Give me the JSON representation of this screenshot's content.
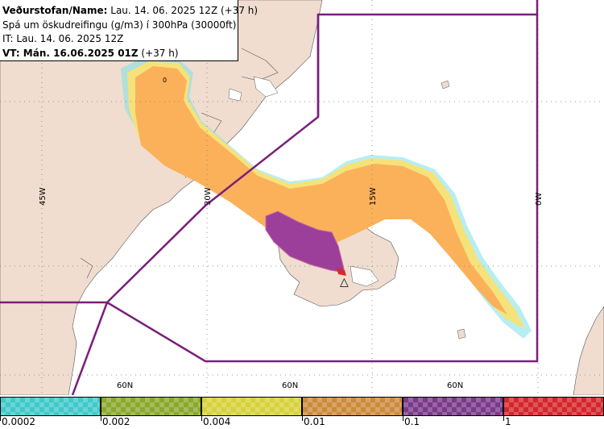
{
  "header": {
    "line1_bold": "Veðurstofan/Name:",
    "line1_rest": " Lau. 14. 06. 2025 12Z (+37 h)",
    "line2": "Spá um öskudreifingu (g/m3) í 300hPa (30000ft)",
    "line3": "IT: Lau. 14. 06. 2025 12Z",
    "line4_bold": "VT: Mán. 16.06.2025 01Z",
    "line4_rest": " (+37 h)"
  },
  "map": {
    "lon_labels": [
      "45W",
      "30W",
      "15W",
      "0W"
    ],
    "lat_labels": [
      "60N",
      "60N",
      "60N"
    ],
    "contour_label": "0",
    "volcano_symbol": "△",
    "colors": {
      "sea": "#ffffff",
      "land": "#f0ddd0",
      "lake": "#ffffff",
      "orange": "#fbb15a",
      "light_orange": "#f8c27a",
      "yellow": "#f5e27a",
      "cyan": "#7be0e8",
      "purple": "#9b3f9a",
      "red": "#d9262e",
      "border": "#7a1f7a",
      "grid": "#777777"
    }
  },
  "legend": {
    "ticks": [
      "0.0002",
      "0.002",
      "0.004",
      "0.01",
      "0.1",
      "1"
    ],
    "colors": [
      "#3fc9c9",
      "#8aa92a",
      "#d6d23a",
      "#cc8a3c",
      "#7a3a8a",
      "#d4262c"
    ]
  }
}
